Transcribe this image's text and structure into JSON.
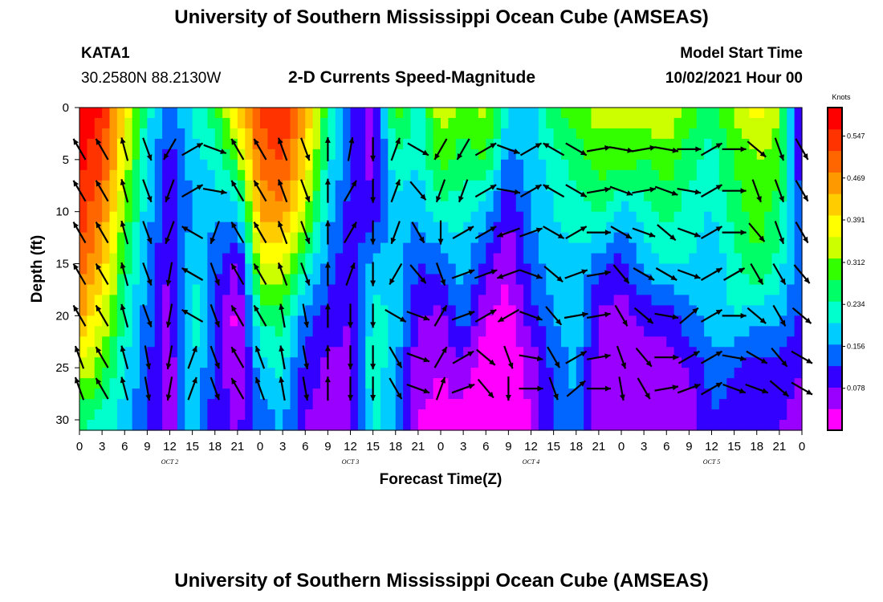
{
  "header": {
    "title": "University of Southern Mississippi Ocean Cube (AMSEAS)",
    "station": "KATA1",
    "coords": "30.2580N  88.2130W",
    "subtitle": "2-D Currents Speed-Magnitude",
    "model_label": "Model Start Time",
    "model_time": "10/02/2021 Hour 00"
  },
  "footer": {
    "title": "University of Southern Mississippi Ocean Cube (AMSEAS)"
  },
  "chart_data": {
    "type": "heatmap",
    "xlabel": "Forecast Time(Z)",
    "ylabel": "Depth (ft)",
    "x_tick_labels": [
      "0",
      "3",
      "6",
      "9",
      "12",
      "15",
      "18",
      "21",
      "0",
      "3",
      "6",
      "9",
      "12",
      "15",
      "18",
      "21",
      "0",
      "3",
      "6",
      "9",
      "12",
      "15",
      "18",
      "21",
      "0",
      "3",
      "6",
      "9",
      "12",
      "15",
      "18",
      "21",
      "0"
    ],
    "date_labels": [
      "OCT 2",
      "OCT 3",
      "OCT 4",
      "OCT 5"
    ],
    "xlim_hours": [
      0,
      96
    ],
    "y_ticks": [
      0,
      5,
      10,
      15,
      20,
      25,
      30
    ],
    "ylim_ft": [
      0,
      31
    ],
    "y_inverted": true,
    "colorbar": {
      "unit": "Knots",
      "labels": [
        "0.547",
        "0.469",
        "0.391",
        "0.312",
        "0.234",
        "0.156",
        "0.078"
      ],
      "vmin": 0.0,
      "vmax": 0.6,
      "colors": [
        "#ff00ff",
        "#9900ff",
        "#3300ff",
        "#0066ff",
        "#00ccff",
        "#00ffcc",
        "#00ff66",
        "#33ff00",
        "#ccff00",
        "#ffff00",
        "#ffcc00",
        "#ff9900",
        "#ff6600",
        "#ff3300",
        "#ff0000"
      ]
    },
    "depths_ft": [
      0,
      5,
      10,
      15,
      20,
      25,
      30
    ],
    "speed_knots_columns": [
      {
        "hour": 0,
        "speed": [
          0.58,
          0.57,
          0.55,
          0.5,
          0.45,
          0.36,
          0.25
        ]
      },
      {
        "hour": 3,
        "speed": [
          0.56,
          0.53,
          0.48,
          0.43,
          0.36,
          0.3,
          0.22
        ]
      },
      {
        "hour": 6,
        "speed": [
          0.4,
          0.36,
          0.31,
          0.26,
          0.23,
          0.2,
          0.18
        ]
      },
      {
        "hour": 9,
        "speed": [
          0.22,
          0.2,
          0.18,
          0.16,
          0.14,
          0.13,
          0.12
        ]
      },
      {
        "hour": 12,
        "speed": [
          0.12,
          0.1,
          0.08,
          0.07,
          0.06,
          0.05,
          0.05
        ]
      },
      {
        "hour": 15,
        "speed": [
          0.22,
          0.18,
          0.16,
          0.2,
          0.23,
          0.21,
          0.19
        ]
      },
      {
        "hour": 18,
        "speed": [
          0.26,
          0.22,
          0.17,
          0.14,
          0.12,
          0.11,
          0.1
        ]
      },
      {
        "hour": 21,
        "speed": [
          0.42,
          0.3,
          0.17,
          0.06,
          0.02,
          0.04,
          0.07
        ]
      },
      {
        "hour": 24,
        "speed": [
          0.53,
          0.5,
          0.45,
          0.35,
          0.25,
          0.18,
          0.14
        ]
      },
      {
        "hour": 27,
        "speed": [
          0.56,
          0.52,
          0.47,
          0.36,
          0.26,
          0.21,
          0.17
        ]
      },
      {
        "hour": 30,
        "speed": [
          0.45,
          0.4,
          0.33,
          0.24,
          0.14,
          0.1,
          0.08
        ]
      },
      {
        "hour": 33,
        "speed": [
          0.26,
          0.22,
          0.18,
          0.14,
          0.1,
          0.07,
          0.06
        ]
      },
      {
        "hour": 36,
        "speed": [
          0.13,
          0.12,
          0.1,
          0.09,
          0.08,
          0.07,
          0.06
        ]
      },
      {
        "hour": 39,
        "speed": [
          0.06,
          0.05,
          0.1,
          0.18,
          0.22,
          0.23,
          0.22
        ]
      },
      {
        "hour": 42,
        "speed": [
          0.3,
          0.24,
          0.17,
          0.18,
          0.19,
          0.17,
          0.15
        ]
      },
      {
        "hour": 45,
        "speed": [
          0.22,
          0.2,
          0.17,
          0.12,
          0.08,
          0.05,
          0.04
        ]
      },
      {
        "hour": 48,
        "speed": [
          0.35,
          0.3,
          0.22,
          0.14,
          0.07,
          0.04,
          0.03
        ]
      },
      {
        "hour": 51,
        "speed": [
          0.3,
          0.26,
          0.22,
          0.18,
          0.15,
          0.06,
          0.03
        ]
      },
      {
        "hour": 54,
        "speed": [
          0.34,
          0.28,
          0.18,
          0.1,
          0.04,
          0.01,
          0.01
        ]
      },
      {
        "hour": 57,
        "speed": [
          0.2,
          0.14,
          0.08,
          0.04,
          0.02,
          0.01,
          0.02
        ]
      },
      {
        "hour": 60,
        "speed": [
          0.18,
          0.18,
          0.16,
          0.14,
          0.1,
          0.05,
          0.04
        ]
      },
      {
        "hour": 63,
        "speed": [
          0.28,
          0.22,
          0.2,
          0.18,
          0.16,
          0.13,
          0.12
        ]
      },
      {
        "hour": 66,
        "speed": [
          0.3,
          0.26,
          0.22,
          0.19,
          0.19,
          0.17,
          0.16
        ]
      },
      {
        "hour": 69,
        "speed": [
          0.34,
          0.3,
          0.25,
          0.14,
          0.07,
          0.06,
          0.05
        ]
      },
      {
        "hour": 72,
        "speed": [
          0.33,
          0.3,
          0.18,
          0.1,
          0.06,
          0.05,
          0.05
        ]
      },
      {
        "hour": 75,
        "speed": [
          0.35,
          0.28,
          0.22,
          0.18,
          0.09,
          0.06,
          0.06
        ]
      },
      {
        "hour": 78,
        "speed": [
          0.36,
          0.3,
          0.26,
          0.2,
          0.1,
          0.06,
          0.04
        ]
      },
      {
        "hour": 81,
        "speed": [
          0.3,
          0.26,
          0.22,
          0.2,
          0.15,
          0.08,
          0.05
        ]
      },
      {
        "hour": 84,
        "speed": [
          0.25,
          0.22,
          0.2,
          0.16,
          0.18,
          0.14,
          0.12
        ]
      },
      {
        "hour": 87,
        "speed": [
          0.34,
          0.28,
          0.26,
          0.22,
          0.2,
          0.12,
          0.1
        ]
      },
      {
        "hour": 90,
        "speed": [
          0.38,
          0.32,
          0.3,
          0.28,
          0.18,
          0.1,
          0.09
        ]
      },
      {
        "hour": 93,
        "speed": [
          0.32,
          0.3,
          0.26,
          0.22,
          0.17,
          0.1,
          0.08
        ]
      },
      {
        "hour": 96,
        "speed": [
          0.05,
          0.08,
          0.1,
          0.12,
          0.11,
          0.08,
          0.07
        ]
      }
    ],
    "arrow_depths_ft": [
      4,
      8,
      12,
      16,
      20,
      24,
      27
    ],
    "arrow_dir_deg_columns": [
      {
        "hour": 0,
        "dir": [
          330,
          330,
          330,
          330,
          330,
          340,
          340
        ]
      },
      {
        "hour": 3,
        "dir": [
          330,
          330,
          330,
          330,
          330,
          330,
          330
        ]
      },
      {
        "hour": 6,
        "dir": [
          345,
          345,
          345,
          345,
          345,
          345,
          345
        ]
      },
      {
        "hour": 9,
        "dir": [
          160,
          160,
          160,
          160,
          160,
          170,
          170
        ]
      },
      {
        "hour": 12,
        "dir": [
          210,
          200,
          200,
          190,
          190,
          190,
          190
        ]
      },
      {
        "hour": 15,
        "dir": [
          60,
          60,
          300,
          300,
          300,
          20,
          20
        ]
      },
      {
        "hour": 18,
        "dir": [
          110,
          100,
          200,
          160,
          160,
          160,
          160
        ]
      },
      {
        "hour": 21,
        "dir": [
          330,
          330,
          330,
          330,
          330,
          330,
          330
        ]
      },
      {
        "hour": 24,
        "dir": [
          330,
          330,
          330,
          330,
          330,
          340,
          340
        ]
      },
      {
        "hour": 27,
        "dir": [
          340,
          340,
          340,
          340,
          350,
          350,
          350
        ]
      },
      {
        "hour": 30,
        "dir": [
          160,
          160,
          160,
          160,
          170,
          170,
          170
        ]
      },
      {
        "hour": 33,
        "dir": [
          0,
          0,
          0,
          0,
          0,
          0,
          0
        ]
      },
      {
        "hour": 36,
        "dir": [
          10,
          30,
          30,
          20,
          180,
          180,
          180
        ]
      },
      {
        "hour": 39,
        "dir": [
          180,
          180,
          180,
          180,
          180,
          180,
          180
        ]
      },
      {
        "hour": 42,
        "dir": [
          20,
          20,
          200,
          210,
          120,
          150,
          150
        ]
      },
      {
        "hour": 45,
        "dir": [
          120,
          140,
          150,
          140,
          110,
          110,
          110
        ]
      },
      {
        "hour": 48,
        "dir": [
          210,
          200,
          180,
          160,
          30,
          30,
          20
        ]
      },
      {
        "hour": 51,
        "dir": [
          210,
          200,
          60,
          70,
          70,
          60,
          70
        ]
      },
      {
        "hour": 54,
        "dir": [
          60,
          60,
          60,
          70,
          60,
          130,
          140
        ]
      },
      {
        "hour": 57,
        "dir": [
          110,
          100,
          250,
          250,
          240,
          160,
          180
        ]
      },
      {
        "hour": 60,
        "dir": [
          60,
          60,
          70,
          110,
          110,
          100,
          90
        ]
      },
      {
        "hour": 63,
        "dir": [
          300,
          300,
          120,
          130,
          140,
          150,
          160
        ]
      },
      {
        "hour": 66,
        "dir": [
          120,
          120,
          60,
          70,
          80,
          60,
          50
        ]
      },
      {
        "hour": 69,
        "dir": [
          80,
          80,
          90,
          80,
          80,
          80,
          90
        ]
      },
      {
        "hour": 72,
        "dir": [
          100,
          110,
          120,
          140,
          150,
          160,
          170
        ]
      },
      {
        "hour": 75,
        "dir": [
          80,
          80,
          110,
          120,
          130,
          140,
          150
        ]
      },
      {
        "hour": 78,
        "dir": [
          100,
          110,
          130,
          120,
          100,
          90,
          80
        ]
      },
      {
        "hour": 81,
        "dir": [
          90,
          100,
          110,
          110,
          50,
          60,
          70
        ]
      },
      {
        "hour": 84,
        "dir": [
          60,
          60,
          60,
          60,
          60,
          60,
          60
        ]
      },
      {
        "hour": 87,
        "dir": [
          90,
          90,
          90,
          60,
          90,
          100,
          110
        ]
      },
      {
        "hour": 90,
        "dir": [
          130,
          160,
          140,
          150,
          130,
          120,
          110
        ]
      },
      {
        "hour": 93,
        "dir": [
          160,
          160,
          160,
          150,
          150,
          140,
          130
        ]
      },
      {
        "hour": 96,
        "dir": [
          150,
          150,
          150,
          140,
          130,
          120,
          120
        ]
      }
    ]
  }
}
